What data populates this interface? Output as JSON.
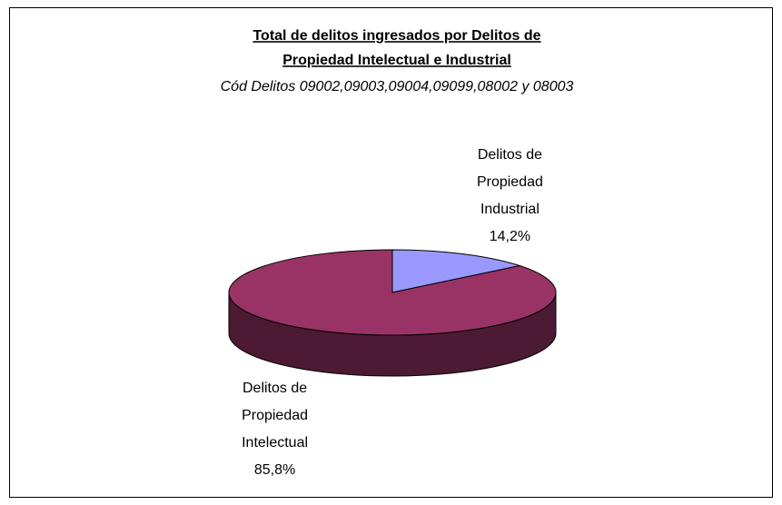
{
  "chart_data": {
    "type": "pie",
    "title": [
      "Total de delitos ingresados por Delitos de",
      "Propiedad Intelectual e Industrial"
    ],
    "subtitle": "Cód Delitos 09002,09003,09004,09099,08002 y 08003",
    "categories": [
      "Delitos de Propiedad Industrial",
      "Delitos de Propiedad Intelectual"
    ],
    "values": [
      14.2,
      85.8
    ],
    "value_labels": [
      "14,2%",
      "85,8%"
    ],
    "colors": [
      "#9999ff",
      "#993366"
    ]
  }
}
